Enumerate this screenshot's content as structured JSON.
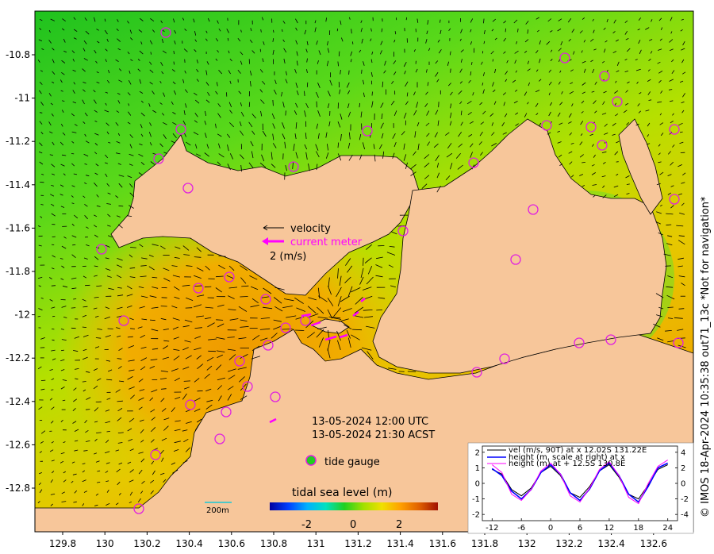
{
  "map": {
    "x_ticks": [
      "129.8",
      "130",
      "130.2",
      "130.4",
      "130.6",
      "130.8",
      "131",
      "131.2",
      "131.4",
      "131.6",
      "131.8",
      "132",
      "132.2",
      "132.4",
      "132.6"
    ],
    "y_ticks": [
      "-10.8",
      "-11",
      "-11.2",
      "-11.4",
      "-11.6",
      "-11.8",
      "-12",
      "-12.2",
      "-12.4",
      "-12.6",
      "-12.8"
    ],
    "colors": {
      "land": "#f7c69a",
      "gauge_ring": "#e020e0",
      "gauge_fill": "#22cc22",
      "current_meter": "#ff00ff"
    },
    "gauges": [
      [
        209,
        41
      ],
      [
        712,
        73
      ],
      [
        762,
        96
      ],
      [
        778,
        128
      ],
      [
        850,
        163
      ],
      [
        463,
        165
      ],
      [
        689,
        158
      ],
      [
        745,
        160
      ],
      [
        759,
        183
      ],
      [
        228,
        163
      ],
      [
        200,
        200
      ],
      [
        370,
        210
      ],
      [
        237,
        237
      ],
      [
        597,
        205
      ],
      [
        672,
        264
      ],
      [
        508,
        291
      ],
      [
        850,
        251
      ],
      [
        128,
        314
      ],
      [
        289,
        349
      ],
      [
        650,
        327
      ],
      [
        250,
        363
      ],
      [
        335,
        377
      ],
      [
        156,
        404
      ],
      [
        360,
        413
      ],
      [
        385,
        404
      ],
      [
        338,
        435
      ],
      [
        730,
        432
      ],
      [
        770,
        428
      ],
      [
        855,
        432
      ],
      [
        636,
        452
      ],
      [
        302,
        455
      ],
      [
        312,
        487
      ],
      [
        347,
        500
      ],
      [
        240,
        510
      ],
      [
        285,
        519
      ],
      [
        277,
        553
      ],
      [
        601,
        469
      ],
      [
        196,
        573
      ],
      [
        175,
        641
      ],
      [
        392,
        580
      ]
    ]
  },
  "legend": {
    "velocity_label": "velocity",
    "current_meter_label": "current meter",
    "scale_label": "2 (m/s)",
    "tide_gauge_label": "tide gauge"
  },
  "timestamp": {
    "utc": "13-05-2024 12:00 UTC",
    "local": "13-05-2024 21:30 ACST"
  },
  "colorbar": {
    "title": "tidal sea level (m)",
    "ticks": [
      "-2",
      "0",
      "2"
    ],
    "colors": [
      "#00009f",
      "#0040ff",
      "#00b0ff",
      "#00e0c0",
      "#20d020",
      "#a0e000",
      "#f0e000",
      "#ffa000",
      "#e06000",
      "#a01000"
    ]
  },
  "scale_bar_label": "200m",
  "credit": "© IMOS 18-Apr-2024 10:35:38 out71_13c  *Not for navigation*",
  "inset": {
    "legend": [
      "vel (m/s, 90T) at x 12.02S 131.22E",
      "height (m, scale at right) at x",
      "height (m) at + 12.5S 130.8E"
    ],
    "colors": [
      "#000000",
      "#0000ff",
      "#ff00ff"
    ],
    "x_ticks": [
      "-12",
      "-6",
      "0",
      "6",
      "12",
      "18",
      "24"
    ],
    "y_left": [
      "2",
      "1",
      "0",
      "-1",
      "-2"
    ],
    "y_right": [
      "4",
      "2",
      "0",
      "-2",
      "-4"
    ]
  },
  "chart_data": {
    "type": "line",
    "x": [
      -12,
      -10,
      -8,
      -6,
      -4,
      -2,
      0,
      2,
      4,
      6,
      8,
      10,
      12,
      14,
      16,
      18,
      20,
      22,
      24
    ],
    "series": [
      {
        "name": "vel (m/s, 90T) at x 12.02S 131.22E",
        "values": [
          0.9,
          0.6,
          -0.4,
          -0.8,
          -0.3,
          0.7,
          1.1,
          0.5,
          -0.6,
          -0.9,
          -0.2,
          0.8,
          1.2,
          0.4,
          -0.7,
          -1.0,
          -0.1,
          0.9,
          1.2
        ]
      },
      {
        "name": "height (m, scale at right) at x",
        "values": [
          1.9,
          1.0,
          -1.0,
          -2.0,
          -0.8,
          1.4,
          2.4,
          1.2,
          -1.2,
          -2.2,
          -0.7,
          1.6,
          2.6,
          1.0,
          -1.4,
          -2.4,
          -0.4,
          2.0,
          2.6
        ]
      },
      {
        "name": "height (m) at + 12.5S 130.8E",
        "values": [
          1.2,
          0.7,
          -0.7,
          -1.1,
          -0.4,
          0.8,
          1.3,
          0.6,
          -0.8,
          -1.2,
          -0.3,
          0.9,
          1.4,
          0.5,
          -0.9,
          -1.3,
          0.0,
          1.1,
          1.5
        ]
      }
    ],
    "xlim": [
      -14,
      26
    ],
    "ylim": [
      -2.4,
      2.4
    ],
    "y2lim": [
      -4.8,
      4.8
    ]
  }
}
